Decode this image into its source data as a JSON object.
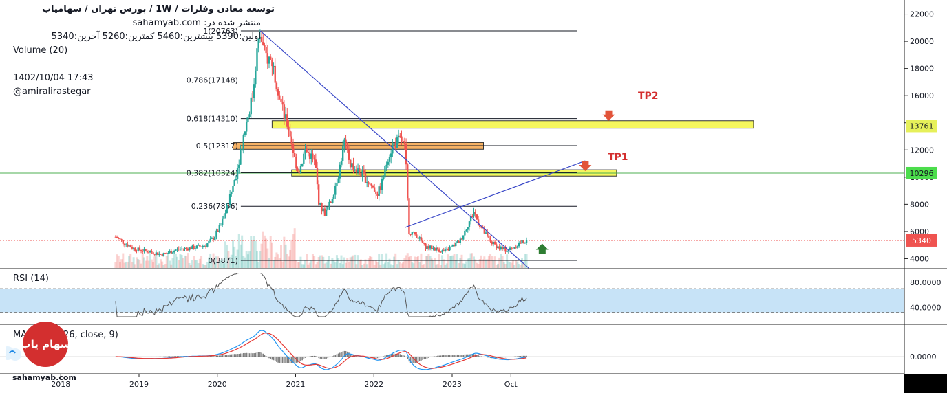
{
  "header": {
    "title": "توسعه معادن وفلزات  /  1W  /  بورس تهران / سهامیاب",
    "published": "منتشر شده در: sahamyab.com",
    "ohlc": "اولین:5390  بیشترین:5460  کمترین:5260  آخرین:5340",
    "volume": "Volume (20)",
    "date": "1402/10/04 17:43",
    "author": "@amiralirastegar"
  },
  "logo": {
    "text": "سهام یاب",
    "color": "#d32f2f"
  },
  "footer": {
    "site": "sahamyab.com"
  },
  "colors": {
    "up": "#26a69a",
    "down": "#ef5350",
    "trend": "#3a48c8",
    "zone": "#f3f542",
    "zone_orange": "#f5a54a",
    "rsi_band": "#c7e3f7",
    "macd": "#2196f3",
    "signal": "#e53935"
  },
  "chart_data": [
    {
      "type": "candlestick",
      "title": "توسعه معادن وفلزات",
      "interval": "1W",
      "x_ticks": [
        "2018",
        "2019",
        "2020",
        "2021",
        "2022",
        "2023",
        "Oct"
      ],
      "y_ticks": [
        4000,
        6000,
        8000,
        10000,
        12000,
        14000,
        16000,
        18000,
        20000,
        22000
      ],
      "ylim": [
        3300,
        22700
      ],
      "last_price": 5340,
      "price_labels": [
        13761,
        10296,
        5340
      ],
      "price_path": [
        [
          2018.7,
          5600
        ],
        [
          2018.8,
          5200
        ],
        [
          2018.95,
          4700
        ],
        [
          2019.15,
          4500
        ],
        [
          2019.3,
          4300
        ],
        [
          2019.5,
          4700
        ],
        [
          2019.7,
          4800
        ],
        [
          2019.85,
          5000
        ],
        [
          2019.95,
          5500
        ],
        [
          2020.05,
          6500
        ],
        [
          2020.15,
          8200
        ],
        [
          2020.25,
          10500
        ],
        [
          2020.35,
          13500
        ],
        [
          2020.45,
          16000
        ],
        [
          2020.5,
          19000
        ],
        [
          2020.55,
          20500
        ],
        [
          2020.6,
          19000
        ],
        [
          2020.7,
          18500
        ],
        [
          2020.78,
          16500
        ],
        [
          2020.85,
          14500
        ],
        [
          2020.92,
          13500
        ],
        [
          2021.0,
          11000
        ],
        [
          2021.05,
          10500
        ],
        [
          2021.12,
          12000
        ],
        [
          2021.2,
          11500
        ],
        [
          2021.25,
          11000
        ],
        [
          2021.3,
          8000
        ],
        [
          2021.38,
          7300
        ],
        [
          2021.45,
          8200
        ],
        [
          2021.55,
          10300
        ],
        [
          2021.62,
          12600
        ],
        [
          2021.7,
          11000
        ],
        [
          2021.78,
          10500
        ],
        [
          2021.85,
          10200
        ],
        [
          2021.95,
          9500
        ],
        [
          2022.05,
          8800
        ],
        [
          2022.1,
          9500
        ],
        [
          2022.18,
          11500
        ],
        [
          2022.25,
          12400
        ],
        [
          2022.35,
          12800
        ],
        [
          2022.4,
          12000
        ],
        [
          2022.45,
          6000
        ],
        [
          2022.55,
          5700
        ],
        [
          2022.65,
          4900
        ],
        [
          2022.8,
          4700
        ],
        [
          2022.9,
          4500
        ],
        [
          2023.0,
          4900
        ],
        [
          2023.1,
          5300
        ],
        [
          2023.2,
          6500
        ],
        [
          2023.28,
          7500
        ],
        [
          2023.32,
          6800
        ],
        [
          2023.4,
          6000
        ],
        [
          2023.5,
          5200
        ],
        [
          2023.6,
          4800
        ],
        [
          2023.7,
          4600
        ],
        [
          2023.8,
          4900
        ],
        [
          2023.88,
          5200
        ],
        [
          2023.95,
          5340
        ]
      ],
      "fib_levels": [
        {
          "label": "1(20763)",
          "value": 20763
        },
        {
          "label": "0.786(17148)",
          "value": 17148
        },
        {
          "label": "0.618(14310)",
          "value": 14310
        },
        {
          "label": "0.5(12317)",
          "value": 12317
        },
        {
          "label": "0.382(10324)",
          "value": 10324
        },
        {
          "label": "0.236(7856)",
          "value": 7856
        },
        {
          "label": "0(3871)",
          "value": 3871
        }
      ],
      "zones": [
        {
          "from": 13600,
          "to": 14150,
          "x0": 2020.7,
          "x1": 2026.85,
          "color": "yellow"
        },
        {
          "from": 12050,
          "to": 12550,
          "x0": 2020.2,
          "x1": 2023.4,
          "color": "orange"
        },
        {
          "from": 10080,
          "to": 10540,
          "x0": 2020.95,
          "x1": 2025.1,
          "color": "yellow"
        }
      ],
      "horizontal_lines": [
        13761,
        10296
      ],
      "trendlines": [
        {
          "from": [
            2020.55,
            20763
          ],
          "to": [
            2023.98,
            3300
          ]
        },
        {
          "from": [
            2022.4,
            6300
          ],
          "to": [
            2024.7,
            11200
          ]
        }
      ],
      "targets": [
        {
          "label": "TP2",
          "x": 2025.0,
          "y": 14300
        },
        {
          "label": "TP1",
          "x": 2024.7,
          "y": 10600
        }
      ]
    },
    {
      "type": "line",
      "title": "RSI (14)",
      "y_ticks": [
        40,
        80
      ],
      "y_tick_labels": [
        "40.0000",
        "80.0000"
      ],
      "band": [
        32,
        70
      ]
    },
    {
      "type": "line",
      "title": "MACD (12, 26, close, 9)",
      "y_ticks": [
        0
      ],
      "y_tick_labels": [
        "0.0000"
      ],
      "series": [
        {
          "name": "MACD"
        },
        {
          "name": "Signal"
        }
      ]
    }
  ]
}
